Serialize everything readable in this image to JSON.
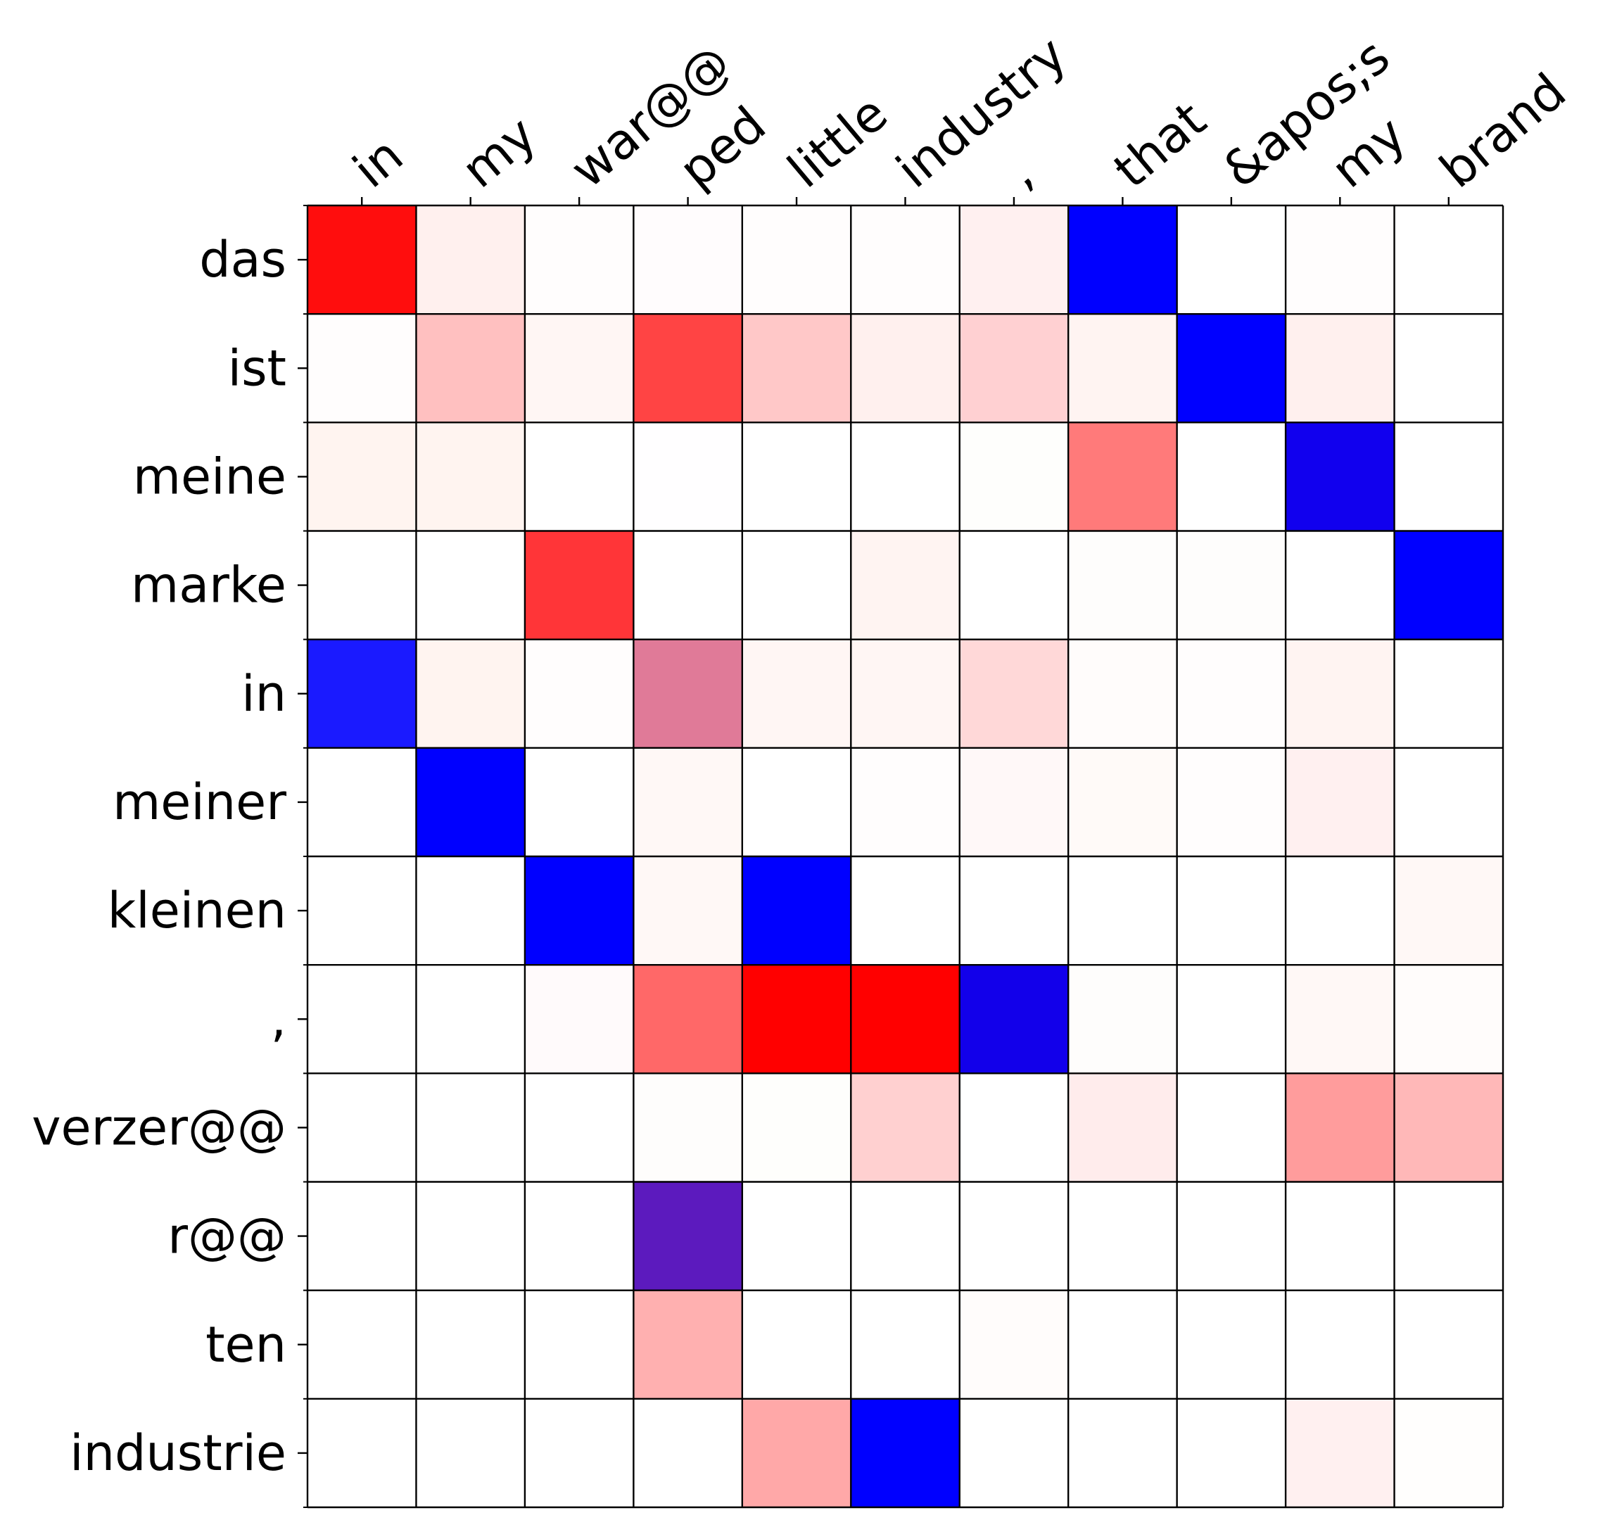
{
  "chart_data": {
    "type": "heatmap",
    "title": "",
    "xlabel": "",
    "ylabel": "",
    "x_tick_labels": [
      "in",
      "my",
      "war@@",
      "ped",
      "little",
      "industry",
      ",",
      "that",
      "&apos;s",
      "my",
      "brand"
    ],
    "y_tick_labels": [
      "das",
      "ist",
      "meine",
      "marke",
      "in",
      "meiner",
      "kleinen",
      ",",
      "verzer@@",
      "r@@",
      "ten",
      "industrie"
    ],
    "x_axis_position": "top",
    "colormap": "blue-white-red diverging (red and blue channels combined; purple where both are present)",
    "grid": true,
    "legend": "none",
    "cells": [
      [
        "#ff0d0d",
        "#fff0ee",
        "#fffdfd",
        "#fffcfd",
        "#fffdfd",
        "#fffdfd",
        "#fff0f0",
        "#0000ff",
        "#ffffff",
        "#fffdfd",
        "#ffffff"
      ],
      [
        "#fffdfd",
        "#ffc0c0",
        "#fff6f4",
        "#ff4444",
        "#ffc8c8",
        "#fff0ee",
        "#ffd0d2",
        "#fff4f2",
        "#0000ff",
        "#fff0ee",
        "#ffffff"
      ],
      [
        "#fff4f0",
        "#fff4f0",
        "#ffffff",
        "#fffeff",
        "#ffffff",
        "#ffffff",
        "#fefefc",
        "#ff7a7a",
        "#ffffff",
        "#1100ee",
        "#ffffff"
      ],
      [
        "#ffffff",
        "#ffffff",
        "#ff3538",
        "#ffffff",
        "#ffffff",
        "#fff4f2",
        "#ffffff",
        "#fefdfc",
        "#fefdfc",
        "#ffffff",
        "#0000ff"
      ],
      [
        "#1a1aff",
        "#fff4f0",
        "#fffdfd",
        "#e07a98",
        "#fff6f4",
        "#fff6f4",
        "#ffd8d8",
        "#fffcfb",
        "#fffdfd",
        "#fff4f2",
        "#ffffff"
      ],
      [
        "#ffffff",
        "#0000ff",
        "#ffffff",
        "#fff8f6",
        "#ffffff",
        "#fffdfd",
        "#fff8f8",
        "#fffaf8",
        "#fffdfd",
        "#fff0f0",
        "#ffffff"
      ],
      [
        "#ffffff",
        "#ffffff",
        "#0000ff",
        "#fff8f6",
        "#0000ff",
        "#ffffff",
        "#ffffff",
        "#ffffff",
        "#ffffff",
        "#ffffff",
        "#fff8f6"
      ],
      [
        "#ffffff",
        "#ffffff",
        "#fffafb",
        "#ff6868",
        "#ff0000",
        "#ff0000",
        "#1200ea",
        "#fefdfc",
        "#ffffff",
        "#fff8f6",
        "#fffcfb"
      ],
      [
        "#ffffff",
        "#ffffff",
        "#ffffff",
        "#fefdfc",
        "#fefefc",
        "#ffd0d0",
        "#ffffff",
        "#ffecec",
        "#ffffff",
        "#ff9c9c",
        "#ffb8b8"
      ],
      [
        "#ffffff",
        "#ffffff",
        "#ffffff",
        "#5c1abe",
        "#ffffff",
        "#ffffff",
        "#ffffff",
        "#ffffff",
        "#ffffff",
        "#ffffff",
        "#ffffff"
      ],
      [
        "#ffffff",
        "#ffffff",
        "#ffffff",
        "#ffb0b0",
        "#ffffff",
        "#ffffff",
        "#fffcfb",
        "#ffffff",
        "#ffffff",
        "#ffffff",
        "#ffffff"
      ],
      [
        "#ffffff",
        "#ffffff",
        "#ffffff",
        "#ffffff",
        "#ffa8a8",
        "#0000ff",
        "#ffffff",
        "#ffffff",
        "#ffffff",
        "#fff0f0",
        "#fffefd"
      ]
    ]
  }
}
